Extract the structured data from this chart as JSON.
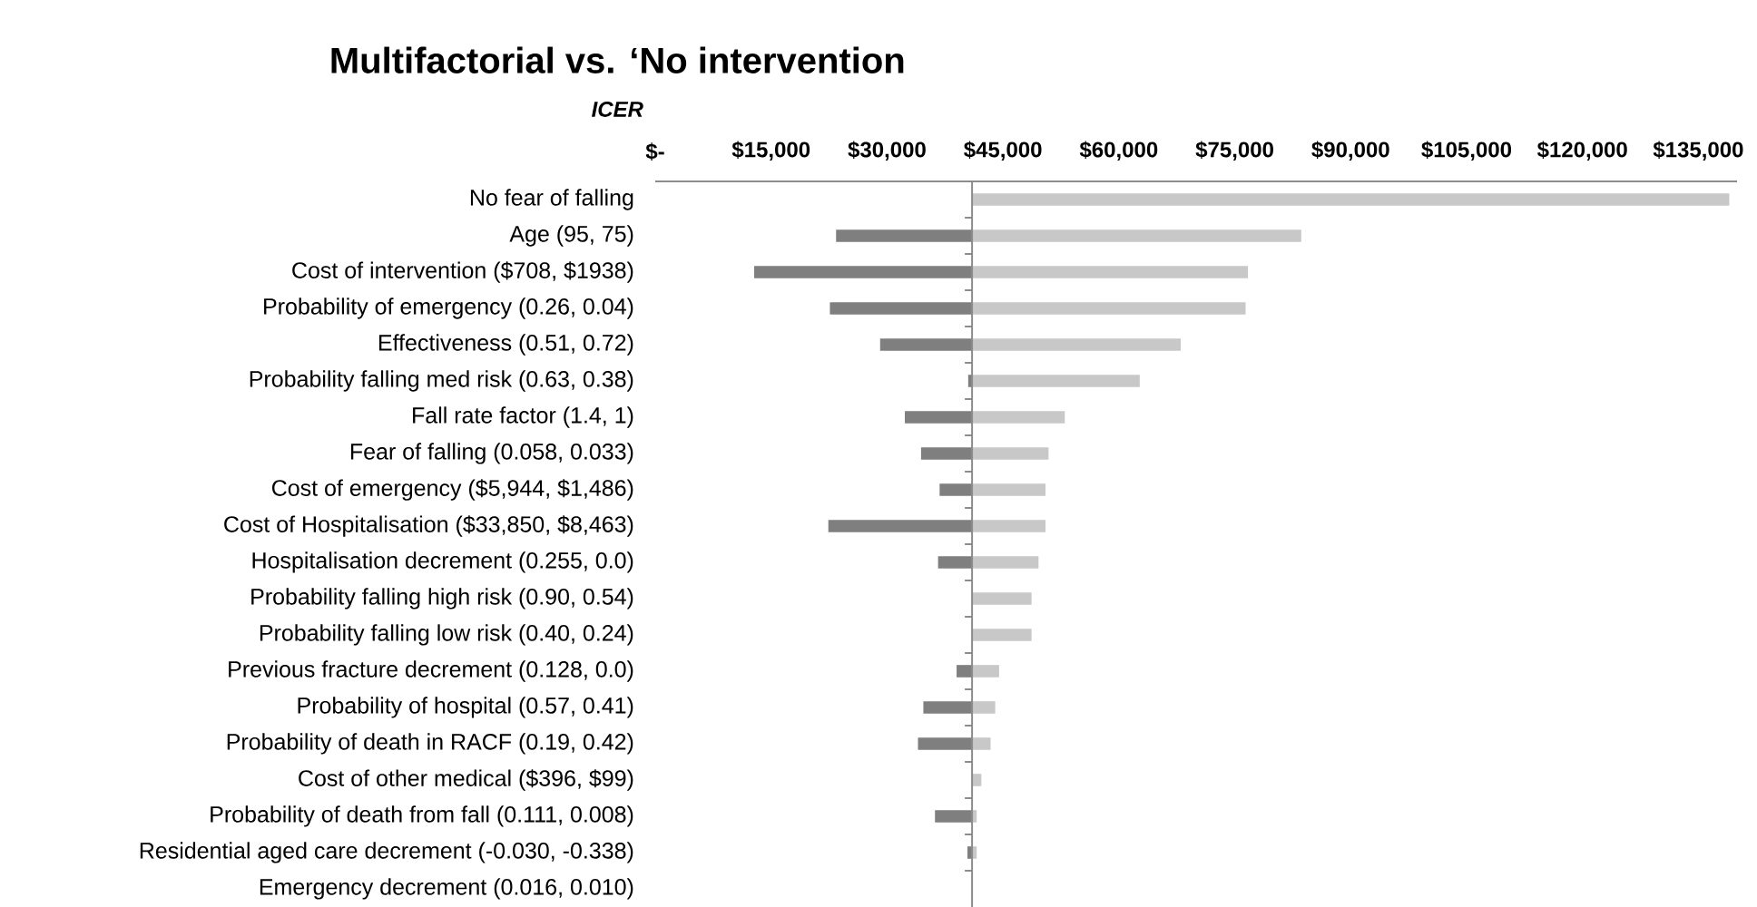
{
  "chart_data": {
    "type": "bar",
    "orientation": "horizontal",
    "title": "Multifactorial vs. ‘No intervention",
    "xlabel": "ICER",
    "categories": [
      "No fear of falling",
      "Age (95, 75)",
      "Cost of intervention ($708, $1938)",
      "Probability of emergency (0.26, 0.04)",
      "Effectiveness (0.51, 0.72)",
      "Probability falling med risk (0.63, 0.38)",
      "Fall rate factor (1.4, 1)",
      "Fear of falling (0.058, 0.033)",
      "Cost of emergency ($5,944, $1,486)",
      "Cost of Hospitalisation ($33,850, $8,463)",
      "Hospitalisation decrement (0.255, 0.0)",
      "Probability falling high risk (0.90, 0.54)",
      "Probability falling low risk (0.40, 0.24)",
      "Previous fracture decrement (0.128, 0.0)",
      "Probability of hospital (0.57, 0.41)",
      "Probability of death in RACF (0.19, 0.42)",
      "Cost of other medical ($396, $99)",
      "Probability of death from fall (0.111, 0.008)",
      "Residential aged care decrement (-0.030, -0.338)",
      "Emergency decrement (0.016, 0.010)"
    ],
    "series": [
      {
        "color": "#7f7f7f",
        "base": [
          null,
          41000,
          41000,
          41000,
          41000,
          41000,
          41000,
          41000,
          41000,
          41000,
          41000,
          null,
          null,
          41000,
          41000,
          41000,
          null,
          41000,
          41000,
          null
        ],
        "values": [
          null,
          -17600,
          -28200,
          -18400,
          -11900,
          -500,
          -8700,
          -6600,
          -4200,
          -18600,
          -4400,
          null,
          null,
          -2000,
          -6300,
          -7000,
          null,
          -4800,
          -600,
          null
        ]
      },
      {
        "color": "#c8c8c8",
        "base": [
          41000,
          41000,
          41000,
          41000,
          41000,
          41000,
          41000,
          41000,
          41000,
          41000,
          41000,
          41000,
          41000,
          41000,
          41000,
          41000,
          41000,
          41000,
          41000,
          null
        ],
        "values": [
          98000,
          42600,
          35700,
          35400,
          27000,
          21700,
          12000,
          9900,
          9500,
          9500,
          8600,
          7700,
          7700,
          3500,
          3000,
          2400,
          1200,
          600,
          600,
          null
        ]
      }
    ],
    "xlim": [
      0,
      140000
    ],
    "xticks": [
      {
        "value": 0,
        "label": "$-"
      },
      {
        "value": 15000,
        "label": "$15,000"
      },
      {
        "value": 30000,
        "label": "$30,000"
      },
      {
        "value": 45000,
        "label": "$45,000"
      },
      {
        "value": 60000,
        "label": "$60,000"
      },
      {
        "value": 75000,
        "label": "$75,000"
      },
      {
        "value": 90000,
        "label": "$90,000"
      },
      {
        "value": 105000,
        "label": "$105,000"
      },
      {
        "value": 120000,
        "label": "$120,000"
      },
      {
        "value": 135000,
        "label": "$135,000"
      }
    ],
    "ref_lines": [
      {
        "axis": "x",
        "value": 41000,
        "color": "#8c8c8c"
      }
    ]
  }
}
